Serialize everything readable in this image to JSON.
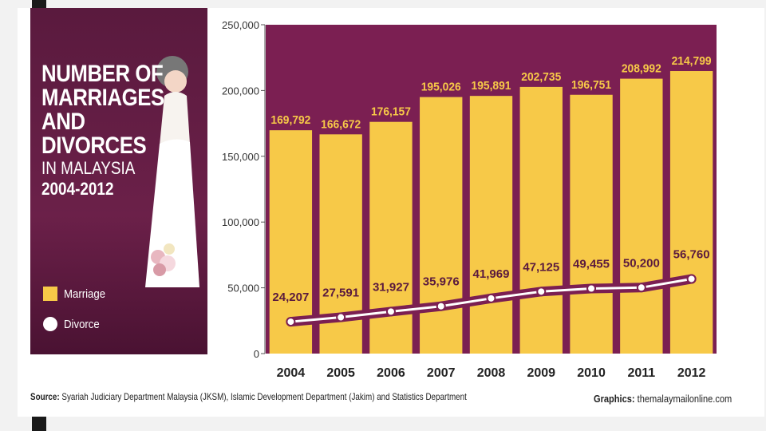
{
  "title": {
    "line1": "NUMBER OF",
    "line2": "MARRIAGES",
    "line3": "AND",
    "line4": "DIVORCES",
    "line5": "IN MALAYSIA",
    "line6": "2004-2012"
  },
  "legend": {
    "marriage": "Marriage",
    "divorce": "Divorce"
  },
  "source": {
    "label": "Source:",
    "text": "Syariah Judiciary Department Malaysia (JKSM), Islamic Development Department (Jakim) and Statistics Department"
  },
  "credit": {
    "label": "Graphics:",
    "text": "themalaymailonline.com"
  },
  "colors": {
    "bar": "#f7c948",
    "background": "#7b1f52",
    "panel": "#5a1a3e",
    "line": "#ffffff"
  },
  "chart_data": {
    "type": "bar",
    "categories": [
      "2004",
      "2005",
      "2006",
      "2007",
      "2008",
      "2009",
      "2010",
      "2011",
      "2012"
    ],
    "series": [
      {
        "name": "Marriage",
        "type": "bar",
        "values": [
          169792,
          166672,
          176157,
          195026,
          195891,
          202735,
          196751,
          208992,
          214799
        ],
        "labels": [
          "169,792",
          "166,672",
          "176,157",
          "195,026",
          "195,891",
          "202,735",
          "196,751",
          "208,992",
          "214,799"
        ]
      },
      {
        "name": "Divorce",
        "type": "line",
        "values": [
          24207,
          27591,
          31927,
          35976,
          41969,
          47125,
          49455,
          50200,
          56760
        ],
        "labels": [
          "24,207",
          "27,591",
          "31,927",
          "35,976",
          "41,969",
          "47,125",
          "49,455",
          "50,200",
          "56,760"
        ]
      }
    ],
    "yticks": [
      "0",
      "50,000",
      "100,000",
      "150,000",
      "200,000",
      "250,000"
    ],
    "ylim": [
      0,
      250000
    ],
    "xlabel": "",
    "ylabel": "",
    "legend_position": "left"
  }
}
